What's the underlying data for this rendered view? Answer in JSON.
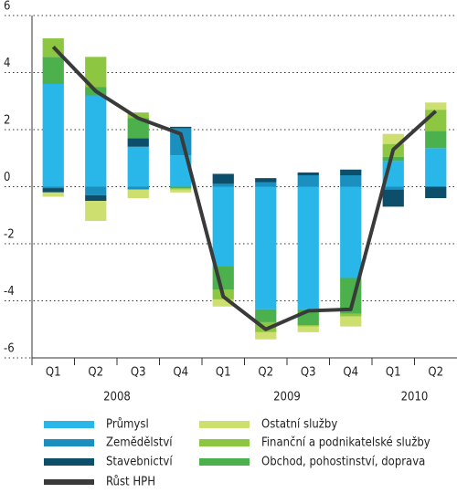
{
  "chart_data": {
    "type": "bar",
    "stacked": true,
    "groups": [
      {
        "label": "2008",
        "categories": [
          "Q1",
          "Q2",
          "Q3",
          "Q4"
        ]
      },
      {
        "label": "2009",
        "categories": [
          "Q1",
          "Q2",
          "Q3",
          "Q4"
        ]
      },
      {
        "label": "2010",
        "categories": [
          "Q1",
          "Q2"
        ]
      }
    ],
    "series": [
      {
        "name": "Průmysl",
        "color": "#29b6e8",
        "values": [
          3.6,
          3.2,
          1.4,
          1.1,
          -2.8,
          -4.3,
          -4.3,
          -3.2,
          0.9,
          1.35
        ]
      },
      {
        "name": "Zemědělství",
        "color": "#1b8fbe",
        "values": [
          -0.05,
          -0.3,
          -0.1,
          0.95,
          0.1,
          0.15,
          0.4,
          0.4,
          -0.1,
          0
        ]
      },
      {
        "name": "Stavebnictví",
        "color": "#0d4f6b",
        "values": [
          -0.15,
          -0.2,
          0.3,
          0.05,
          0.35,
          0.15,
          0.1,
          0.2,
          -0.6,
          -0.4
        ]
      },
      {
        "name": "Obchod, pohostinství, doprava",
        "color": "#4cb04c",
        "values": [
          0.95,
          0.3,
          0.7,
          -0.05,
          -0.8,
          -0.45,
          -0.55,
          -1.25,
          0.15,
          0.6
        ]
      },
      {
        "name": "Finanční a podnikatelské služby",
        "color": "#8dc641",
        "values": [
          0.65,
          1.05,
          0.2,
          -0.05,
          -0.35,
          -0.35,
          -0.05,
          -0.1,
          0.45,
          0.75
        ]
      },
      {
        "name": "Ostatní služby",
        "color": "#cddf6f",
        "values": [
          -0.15,
          -0.7,
          -0.3,
          -0.1,
          -0.25,
          -0.25,
          -0.2,
          -0.35,
          0.35,
          0.25
        ]
      },
      {
        "name": "Růst HPH",
        "type": "line",
        "color": "#3a3a3a",
        "values": [
          4.9,
          3.35,
          2.4,
          1.85,
          -3.85,
          -5.0,
          -4.35,
          -4.3,
          1.3,
          2.65
        ]
      }
    ],
    "ylim": [
      -6,
      6
    ],
    "yticks": [
      -6,
      -4,
      -2,
      0,
      2,
      4,
      6
    ],
    "grid": true
  }
}
